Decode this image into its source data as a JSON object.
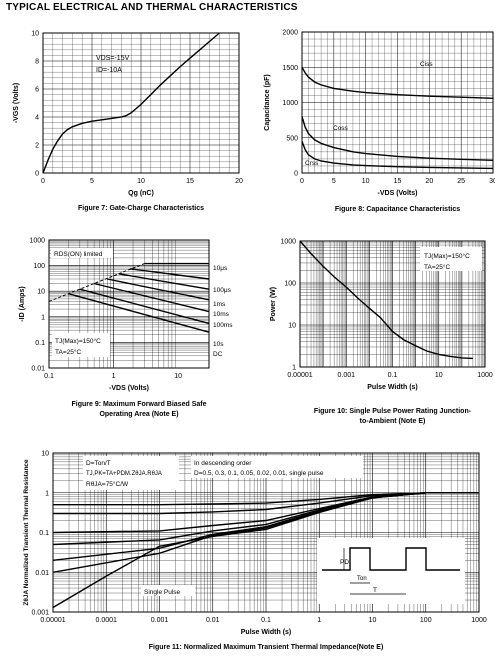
{
  "page_title": "TYPICAL ELECTRICAL AND THERMAL CHARACTERISTICS",
  "chart_data": [
    {
      "id": "fig7",
      "type": "line",
      "caption": "Figure 7: Gate-Charge Characteristics",
      "xlabel": "Qg (nC)",
      "ylabel": "-VGS (Volts)",
      "xlim": [
        0,
        20
      ],
      "ylim": [
        0,
        10
      ],
      "xticks": [
        "0",
        "5",
        "10",
        "15",
        "20"
      ],
      "yticks": [
        "0",
        "2",
        "4",
        "6",
        "8",
        "10"
      ],
      "annotations": [
        "VDS=-15V",
        "ID=-10A"
      ],
      "grid": true,
      "series": [
        {
          "x": [
            0,
            0.5,
            1,
            1.5,
            2,
            2.5,
            3,
            4,
            5,
            6,
            7,
            8,
            8.5,
            9,
            9.5,
            10,
            11,
            12,
            13,
            14,
            15,
            16,
            17,
            18
          ],
          "y": [
            0,
            0.9,
            1.7,
            2.3,
            2.8,
            3.1,
            3.3,
            3.55,
            3.7,
            3.8,
            3.9,
            4.0,
            4.1,
            4.3,
            4.6,
            4.9,
            5.6,
            6.3,
            6.95,
            7.6,
            8.2,
            8.8,
            9.4,
            10.0
          ]
        }
      ]
    },
    {
      "id": "fig8",
      "type": "line",
      "caption": "Figure 8: Capacitance Characteristics",
      "xlabel": "-VDS (Volts)",
      "ylabel": "Capacitance (pF)",
      "xlim": [
        0,
        30
      ],
      "ylim": [
        0,
        2000
      ],
      "xticks": [
        "0",
        "5",
        "10",
        "15",
        "20",
        "25",
        "30"
      ],
      "yticks": [
        "0",
        "500",
        "1000",
        "1500",
        "2000"
      ],
      "grid": true,
      "series": [
        {
          "name": "Ciss",
          "x": [
            0,
            0.5,
            1,
            2,
            3,
            5,
            8,
            10,
            15,
            20,
            25,
            30
          ],
          "y": [
            1500,
            1420,
            1360,
            1290,
            1250,
            1200,
            1160,
            1140,
            1110,
            1090,
            1075,
            1060
          ]
        },
        {
          "name": "Coss",
          "x": [
            0,
            0.5,
            1,
            2,
            3,
            5,
            8,
            10,
            15,
            20,
            25,
            30
          ],
          "y": [
            800,
            650,
            560,
            470,
            420,
            360,
            300,
            275,
            235,
            210,
            195,
            180
          ]
        },
        {
          "name": "Crss",
          "x": [
            0,
            0.5,
            1,
            2,
            3,
            5,
            8,
            10,
            15,
            20,
            25,
            30
          ],
          "y": [
            450,
            330,
            260,
            200,
            170,
            140,
            115,
            105,
            90,
            80,
            72,
            65
          ]
        }
      ]
    },
    {
      "id": "fig9",
      "type": "line",
      "scale": "log-log",
      "caption": "Figure 9: Maximum Forward Biased Safe Operating Area (Note E)",
      "xlabel": "-VDS (Volts)",
      "ylabel": "-ID (Amps)",
      "xlim": [
        0.1,
        30
      ],
      "ylim": [
        0.01,
        1000
      ],
      "xticks": [
        "0.1",
        "1",
        "10"
      ],
      "yticks": [
        "0.01",
        "0.1",
        "1",
        "10",
        "100",
        "1000"
      ],
      "annotations": [
        "RDS(ON) limited",
        "TJ(Max)=150°C",
        "TA=25°C"
      ],
      "grid": true,
      "series": [
        {
          "name": "RDS(ON) limited",
          "x": [
            0.1,
            0.3,
            1,
            3
          ],
          "y": [
            4,
            12,
            40,
            120
          ]
        },
        {
          "name": "10μs",
          "x": [
            3,
            30
          ],
          "y": [
            120,
            120
          ]
        },
        {
          "name": "100μs",
          "x": [
            1.8,
            30
          ],
          "y": [
            75,
            30
          ]
        },
        {
          "name": "1ms",
          "x": [
            1.2,
            30
          ],
          "y": [
            48,
            12
          ]
        },
        {
          "name": "10ms",
          "x": [
            0.8,
            30
          ],
          "y": [
            30,
            4.6
          ]
        },
        {
          "name": "100ms",
          "x": [
            0.5,
            30
          ],
          "y": [
            20,
            1.6
          ]
        },
        {
          "name": "10s",
          "x": [
            0.3,
            30
          ],
          "y": [
            12,
            0.55
          ]
        },
        {
          "name": "DC",
          "x": [
            0.2,
            30
          ],
          "y": [
            8,
            0.25
          ]
        }
      ]
    },
    {
      "id": "fig10",
      "type": "line",
      "scale": "log-log",
      "caption": "Figure 10: Single Pulse Power Rating Junction-to-Ambient (Note E)",
      "xlabel": "Pulse Width (s)",
      "ylabel": "Power (W)",
      "xlim": [
        1e-05,
        1000
      ],
      "ylim": [
        1,
        1000
      ],
      "xticks": [
        "0.00001",
        "0.001",
        "0.1",
        "10",
        "1000"
      ],
      "yticks": [
        "1",
        "10",
        "100",
        "1000"
      ],
      "annotations": [
        "TJ(Max)=150°C",
        "TA=25°C"
      ],
      "grid": true,
      "series": [
        {
          "x": [
            1e-05,
            3e-05,
            0.0001,
            0.0003,
            0.001,
            0.003,
            0.01,
            0.03,
            0.1,
            0.3,
            1,
            3,
            10,
            30,
            100,
            300
          ],
          "y": [
            1000,
            500,
            250,
            140,
            80,
            45,
            25,
            15,
            7,
            4.5,
            3.2,
            2.4,
            2,
            1.8,
            1.65,
            1.6
          ]
        }
      ]
    },
    {
      "id": "fig11",
      "type": "line",
      "scale": "log-log",
      "caption": "Figure 11: Normalized Maximum Transient Thermal Impedance(Note E)",
      "xlabel": "Pulse Width (s)",
      "ylabel": "ZθJA Normalized Transient Thermal Resistance",
      "xlim": [
        1e-05,
        1000
      ],
      "ylim": [
        0.001,
        10
      ],
      "xticks": [
        "0.00001",
        "0.0001",
        "0.001",
        "0.01",
        "0.1",
        "1",
        "10",
        "100",
        "1000"
      ],
      "yticks": [
        "0.001",
        "0.01",
        "0.1",
        "1",
        "10"
      ],
      "annotations": [
        "D=Ton/T",
        "TJ,PK=TA+PDM.ZθJA.RθJA",
        "RθJA=75°C/W",
        "In descending order",
        "D=0.5, 0.3, 0.1, 0.05, 0.02, 0.01, single pulse",
        "Single Pulse",
        "PD",
        "Ton",
        "T"
      ],
      "grid": true,
      "series": [
        {
          "name": "D=0.5",
          "x": [
            1e-05,
            0.001,
            0.01,
            0.1,
            1,
            10,
            100,
            1000
          ],
          "y": [
            0.5,
            0.5,
            0.52,
            0.55,
            0.68,
            0.9,
            1,
            1
          ]
        },
        {
          "name": "D=0.3",
          "x": [
            1e-05,
            0.001,
            0.01,
            0.1,
            1,
            10,
            100,
            1000
          ],
          "y": [
            0.3,
            0.3,
            0.33,
            0.38,
            0.55,
            0.85,
            1,
            1
          ]
        },
        {
          "name": "D=0.1",
          "x": [
            1e-05,
            0.001,
            0.01,
            0.1,
            1,
            10,
            100,
            1000
          ],
          "y": [
            0.1,
            0.11,
            0.15,
            0.2,
            0.4,
            0.78,
            1,
            1
          ]
        },
        {
          "name": "D=0.05",
          "x": [
            1e-05,
            0.001,
            0.01,
            0.1,
            1,
            10,
            100,
            1000
          ],
          "y": [
            0.05,
            0.065,
            0.11,
            0.16,
            0.37,
            0.76,
            1,
            1
          ]
        },
        {
          "name": "D=0.02",
          "x": [
            1e-05,
            0.001,
            0.01,
            0.1,
            1,
            10,
            100,
            1000
          ],
          "y": [
            0.02,
            0.04,
            0.09,
            0.14,
            0.35,
            0.75,
            1,
            1
          ]
        },
        {
          "name": "D=0.01",
          "x": [
            1e-05,
            0.001,
            0.01,
            0.1,
            1,
            10,
            100,
            1000
          ],
          "y": [
            0.01,
            0.03,
            0.085,
            0.13,
            0.34,
            0.75,
            1,
            1
          ]
        },
        {
          "name": "Single Pulse",
          "x": [
            1e-05,
            0.0001,
            0.001,
            0.01,
            0.1,
            1,
            10,
            100,
            1000
          ],
          "y": [
            0.0013,
            0.008,
            0.045,
            0.08,
            0.12,
            0.32,
            0.74,
            1,
            1
          ]
        }
      ]
    }
  ]
}
